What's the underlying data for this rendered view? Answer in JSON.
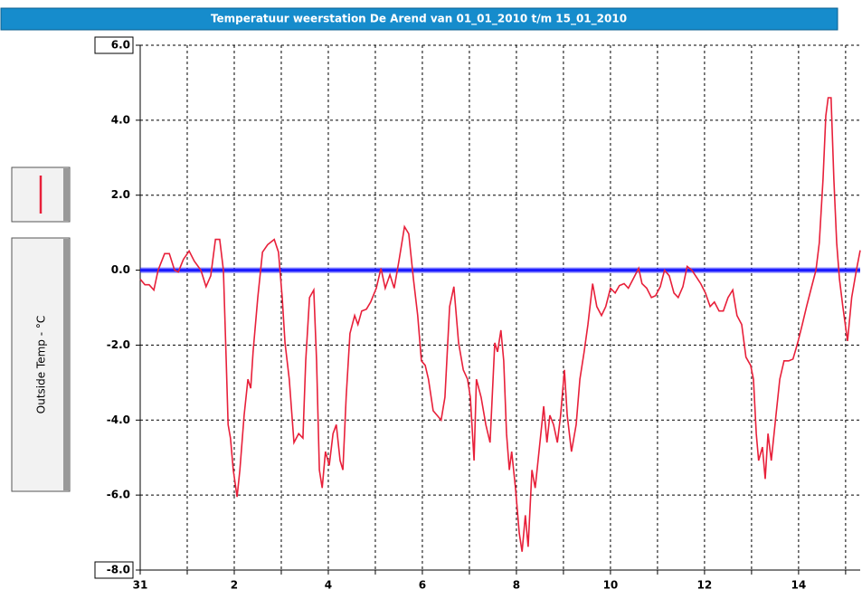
{
  "chart_data": {
    "type": "line",
    "title": "Temperatuur weerstation De Arend van 01_01_2010 t/m 15_01_2010",
    "xlim": [
      0,
      15.31
    ],
    "xticks": [
      {
        "value": 0,
        "label": "31"
      },
      2,
      4,
      6,
      8,
      10,
      12,
      14
    ],
    "xminorticks": [
      1,
      3,
      5,
      7,
      9,
      11,
      13,
      15
    ],
    "ylim": [
      -8,
      6
    ],
    "yticks": [
      {
        "value": 6,
        "label": "6.0"
      },
      {
        "value": 4,
        "label": "4.0"
      },
      {
        "value": 2,
        "label": "2.0"
      },
      {
        "value": 0,
        "label": "0.0"
      },
      {
        "value": -2,
        "label": "-2.0"
      },
      {
        "value": -4,
        "label": "-4.0"
      },
      {
        "value": -6,
        "label": "-6.0"
      },
      {
        "value": -8,
        "label": "-8.0"
      }
    ],
    "grid": true,
    "reference_line": {
      "value": 0,
      "color": "#1a1aff"
    },
    "series": [
      {
        "name": "Outside Temp - °C",
        "color": "#e8203a",
        "x": [
          0.0,
          0.1,
          0.19,
          0.29,
          0.38,
          0.52,
          0.62,
          0.73,
          0.81,
          0.92,
          1.04,
          1.15,
          1.29,
          1.4,
          1.5,
          1.6,
          1.69,
          1.77,
          1.83,
          1.87,
          1.92,
          1.98,
          2.06,
          2.12,
          2.21,
          2.29,
          2.35,
          2.4,
          2.5,
          2.6,
          2.71,
          2.85,
          2.94,
          3.02,
          3.08,
          3.17,
          3.27,
          3.37,
          3.46,
          3.52,
          3.6,
          3.69,
          3.75,
          3.81,
          3.87,
          3.94,
          4.02,
          4.1,
          4.17,
          4.25,
          4.31,
          4.38,
          4.46,
          4.56,
          4.63,
          4.71,
          4.81,
          4.9,
          5.02,
          5.12,
          5.21,
          5.31,
          5.4,
          5.5,
          5.62,
          5.71,
          5.81,
          5.9,
          5.98,
          6.06,
          6.13,
          6.23,
          6.31,
          6.4,
          6.48,
          6.58,
          6.67,
          6.77,
          6.87,
          6.96,
          7.02,
          7.1,
          7.15,
          7.25,
          7.35,
          7.44,
          7.54,
          7.6,
          7.67,
          7.73,
          7.79,
          7.85,
          7.9,
          7.98,
          8.06,
          8.12,
          8.19,
          8.25,
          8.33,
          8.4,
          8.48,
          8.58,
          8.65,
          8.71,
          8.79,
          8.87,
          8.94,
          9.02,
          9.08,
          9.17,
          9.27,
          9.35,
          9.44,
          9.52,
          9.62,
          9.71,
          9.81,
          9.9,
          10.0,
          10.1,
          10.19,
          10.29,
          10.38,
          10.48,
          10.6,
          10.67,
          10.77,
          10.87,
          10.96,
          11.06,
          11.15,
          11.25,
          11.35,
          11.44,
          11.54,
          11.63,
          11.73,
          11.83,
          11.92,
          12.02,
          12.12,
          12.21,
          12.31,
          12.4,
          12.5,
          12.6,
          12.69,
          12.79,
          12.88,
          12.98,
          13.04,
          13.1,
          13.15,
          13.23,
          13.29,
          13.35,
          13.42,
          13.52,
          13.6,
          13.69,
          13.79,
          13.88,
          13.98,
          14.08,
          14.17,
          14.27,
          14.37,
          14.44,
          14.52,
          14.58,
          14.63,
          14.69,
          14.75,
          14.81,
          14.87,
          14.94,
          15.04,
          15.13,
          15.23,
          15.31
        ],
        "values": [
          -0.24,
          -0.39,
          -0.39,
          -0.53,
          0.0,
          0.44,
          0.44,
          0.0,
          -0.05,
          0.29,
          0.51,
          0.24,
          0.0,
          -0.44,
          -0.15,
          0.82,
          0.82,
          0.0,
          -2.42,
          -4.12,
          -4.48,
          -5.33,
          -6.05,
          -5.33,
          -3.87,
          -2.91,
          -3.15,
          -2.18,
          -0.73,
          0.48,
          0.68,
          0.82,
          0.48,
          -0.73,
          -1.94,
          -2.91,
          -4.6,
          -4.36,
          -4.48,
          -2.42,
          -0.73,
          -0.53,
          -2.42,
          -5.33,
          -5.81,
          -4.84,
          -5.21,
          -4.36,
          -4.12,
          -5.08,
          -5.33,
          -3.39,
          -1.69,
          -1.21,
          -1.45,
          -1.09,
          -1.04,
          -0.85,
          -0.48,
          0.05,
          -0.48,
          -0.12,
          -0.48,
          0.24,
          1.16,
          0.97,
          -0.24,
          -1.21,
          -2.42,
          -2.54,
          -2.91,
          -3.75,
          -3.87,
          -4.0,
          -3.39,
          -0.97,
          -0.44,
          -1.94,
          -2.66,
          -2.91,
          -3.39,
          -5.08,
          -2.91,
          -3.39,
          -4.12,
          -4.6,
          -1.94,
          -2.18,
          -1.6,
          -2.42,
          -4.36,
          -5.33,
          -4.84,
          -5.81,
          -7.02,
          -7.51,
          -6.54,
          -7.38,
          -5.33,
          -5.81,
          -4.84,
          -3.63,
          -4.6,
          -3.87,
          -4.12,
          -4.6,
          -3.87,
          -2.66,
          -3.87,
          -4.84,
          -4.12,
          -2.91,
          -2.18,
          -1.45,
          -0.36,
          -0.97,
          -1.21,
          -0.97,
          -0.48,
          -0.61,
          -0.41,
          -0.36,
          -0.48,
          -0.24,
          0.05,
          -0.36,
          -0.48,
          -0.73,
          -0.68,
          -0.44,
          0.0,
          -0.15,
          -0.61,
          -0.73,
          -0.44,
          0.1,
          0.0,
          -0.19,
          -0.36,
          -0.61,
          -0.97,
          -0.85,
          -1.09,
          -1.09,
          -0.73,
          -0.53,
          -1.21,
          -1.45,
          -2.32,
          -2.54,
          -2.91,
          -4.36,
          -5.08,
          -4.72,
          -5.57,
          -4.36,
          -5.08,
          -3.87,
          -2.91,
          -2.42,
          -2.42,
          -2.37,
          -1.94,
          -1.45,
          -0.97,
          -0.48,
          0.0,
          0.73,
          2.42,
          4.12,
          4.6,
          4.6,
          2.42,
          0.73,
          -0.24,
          -0.97,
          -1.89,
          -0.73,
          0.0,
          0.53
        ]
      }
    ]
  }
}
